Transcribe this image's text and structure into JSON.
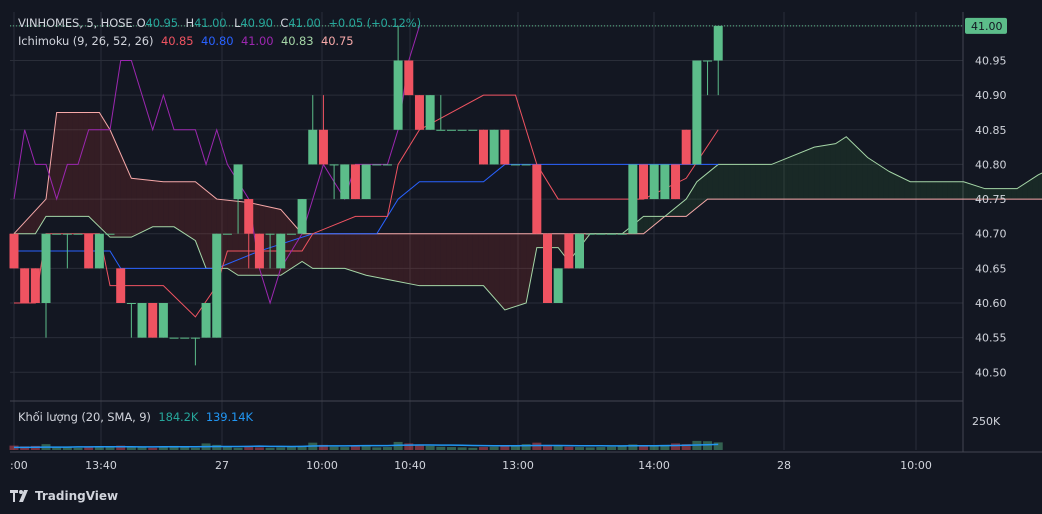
{
  "legend": {
    "symbol": "VINHOMES, 5, HOSE",
    "open_label": "O",
    "open": "40.95",
    "high_label": "H",
    "high": "41.00",
    "low_label": "L",
    "low": "40.90",
    "close_label": "C",
    "close": "41.00",
    "change": "+0.05 (+0.12%)",
    "ichimoku_name": "Ichimoku (9, 26, 52, 26)",
    "ichimoku_values": [
      "40.85",
      "40.80",
      "41.00",
      "40.83",
      "40.75"
    ],
    "volume_name": "Khối lượng (20, SMA, 9)",
    "volume_values": [
      "184.2K",
      "139.14K"
    ]
  },
  "price_badge": "41.00",
  "brand": "TradingView",
  "colors": {
    "bg": "#131722",
    "grid": "#2a2e39",
    "up": "#5cbd8a",
    "down": "#ef5361",
    "tenkan": "#ef5361",
    "kijun": "#2962ff",
    "chikou": "#9c27b0",
    "spanA": "#a5d6a7",
    "spanB": "#f7a9a9",
    "volume_ma": "#2196f3",
    "text": "#d1d4dc"
  },
  "chart_data": {
    "type": "candlestick",
    "title": "VINHOMES, 5, HOSE",
    "ylim": [
      40.46,
      41.02
    ],
    "y_ticks": [
      "41.00",
      "40.95",
      "40.90",
      "40.85",
      "40.80",
      "40.75",
      "40.70",
      "40.65",
      "40.60",
      "40.55",
      "40.50"
    ],
    "x_ticks": [
      ":00",
      "13:40",
      "27",
      "10:00",
      "10:40",
      "13:00",
      "14:00",
      "28",
      "10:00"
    ],
    "volume_tick": "250K",
    "volume_max": 300,
    "candles": [
      [
        40.7,
        40.65,
        40.65,
        40.7
      ],
      [
        40.65,
        40.6,
        40.6,
        40.65
      ],
      [
        40.65,
        40.6,
        40.6,
        40.65
      ],
      [
        40.6,
        40.7,
        40.55,
        40.7
      ],
      [
        40.7,
        40.7,
        40.7,
        40.7
      ],
      [
        40.7,
        40.7,
        40.65,
        40.7
      ],
      [
        40.7,
        40.7,
        40.7,
        40.7
      ],
      [
        40.7,
        40.65,
        40.65,
        40.7
      ],
      [
        40.65,
        40.7,
        40.65,
        40.7
      ],
      [
        40.7,
        40.7,
        40.7,
        40.7
      ],
      [
        40.65,
        40.6,
        40.6,
        40.65
      ],
      [
        40.6,
        40.6,
        40.55,
        40.6
      ],
      [
        40.55,
        40.6,
        40.55,
        40.6
      ],
      [
        40.6,
        40.55,
        40.55,
        40.6
      ],
      [
        40.55,
        40.6,
        40.55,
        40.6
      ],
      [
        40.55,
        40.55,
        40.55,
        40.55
      ],
      [
        40.55,
        40.55,
        40.55,
        40.55
      ],
      [
        40.55,
        40.55,
        40.51,
        40.55
      ],
      [
        40.55,
        40.6,
        40.55,
        40.6
      ],
      [
        40.55,
        40.7,
        40.55,
        40.7
      ],
      [
        40.7,
        40.7,
        40.7,
        40.7
      ],
      [
        40.75,
        40.8,
        40.7,
        40.8
      ],
      [
        40.75,
        40.7,
        40.65,
        40.75
      ],
      [
        40.7,
        40.65,
        40.65,
        40.7
      ],
      [
        40.7,
        40.7,
        40.65,
        40.7
      ],
      [
        40.65,
        40.7,
        40.65,
        40.7
      ],
      [
        40.7,
        40.7,
        40.7,
        40.7
      ],
      [
        40.7,
        40.75,
        40.7,
        40.75
      ],
      [
        40.8,
        40.85,
        40.8,
        40.9
      ],
      [
        40.85,
        40.8,
        40.8,
        40.9
      ],
      [
        40.8,
        40.8,
        40.75,
        40.8
      ],
      [
        40.75,
        40.8,
        40.75,
        40.8
      ],
      [
        40.8,
        40.75,
        40.75,
        40.8
      ],
      [
        40.75,
        40.8,
        40.75,
        40.8
      ],
      [
        40.8,
        40.8,
        40.8,
        40.8
      ],
      [
        40.8,
        40.8,
        40.8,
        40.8
      ],
      [
        40.85,
        40.95,
        40.85,
        41.0
      ],
      [
        40.95,
        40.9,
        40.9,
        40.95
      ],
      [
        40.9,
        40.85,
        40.85,
        40.9
      ],
      [
        40.85,
        40.9,
        40.85,
        40.9
      ],
      [
        40.85,
        40.85,
        40.85,
        40.9
      ],
      [
        40.85,
        40.85,
        40.85,
        40.85
      ],
      [
        40.85,
        40.85,
        40.85,
        40.85
      ],
      [
        40.85,
        40.85,
        40.85,
        40.85
      ],
      [
        40.85,
        40.8,
        40.8,
        40.85
      ],
      [
        40.8,
        40.85,
        40.8,
        40.85
      ],
      [
        40.85,
        40.8,
        40.8,
        40.85
      ],
      [
        40.8,
        40.8,
        40.8,
        40.8
      ],
      [
        40.8,
        40.8,
        40.8,
        40.8
      ],
      [
        40.8,
        40.7,
        40.7,
        40.8
      ],
      [
        40.7,
        40.6,
        40.6,
        40.7
      ],
      [
        40.6,
        40.65,
        40.6,
        40.65
      ],
      [
        40.7,
        40.65,
        40.65,
        40.7
      ],
      [
        40.65,
        40.7,
        40.65,
        40.7
      ],
      [
        40.7,
        40.7,
        40.7,
        40.7
      ],
      [
        40.7,
        40.7,
        40.7,
        40.7
      ],
      [
        40.7,
        40.7,
        40.7,
        40.7
      ],
      [
        40.7,
        40.7,
        40.7,
        40.7
      ],
      [
        40.7,
        40.8,
        40.7,
        40.8
      ],
      [
        40.8,
        40.75,
        40.75,
        40.8
      ],
      [
        40.75,
        40.8,
        40.75,
        40.8
      ],
      [
        40.75,
        40.8,
        40.75,
        40.8
      ],
      [
        40.8,
        40.75,
        40.75,
        40.8
      ],
      [
        40.85,
        40.8,
        40.8,
        40.85
      ],
      [
        40.8,
        40.95,
        40.8,
        40.95
      ],
      [
        40.95,
        40.95,
        40.9,
        40.95
      ],
      [
        40.95,
        41.0,
        40.9,
        41.0
      ]
    ],
    "volume": [
      30,
      25,
      28,
      40,
      20,
      18,
      15,
      22,
      26,
      20,
      30,
      20,
      18,
      15,
      22,
      28,
      18,
      15,
      45,
      35,
      25,
      15,
      20,
      18,
      15,
      18,
      20,
      25,
      50,
      35,
      22,
      20,
      30,
      25,
      18,
      20,
      55,
      45,
      35,
      28,
      22,
      20,
      18,
      15,
      20,
      22,
      30,
      25,
      40,
      50,
      35,
      28,
      22,
      20,
      18,
      20,
      22,
      25,
      38,
      30,
      28,
      35,
      45,
      40,
      62,
      60,
      52
    ],
    "volume_sma": [
      18,
      18,
      19,
      20,
      20,
      20,
      21,
      21,
      22,
      22,
      22,
      22,
      21,
      21,
      22,
      22,
      22,
      22,
      23,
      24,
      24,
      24,
      25,
      26,
      25,
      25,
      24,
      25,
      27,
      28,
      28,
      28,
      29,
      30,
      30,
      30,
      32,
      33,
      34,
      34,
      33,
      33,
      32,
      31,
      30,
      29,
      29,
      29,
      30,
      31,
      31,
      31,
      30,
      29,
      29,
      29,
      28,
      28,
      29,
      29,
      29,
      30,
      31,
      32,
      34,
      36,
      38
    ],
    "tenkan": [
      [
        0,
        40.6
      ],
      [
        2,
        40.6
      ],
      [
        3,
        40.7
      ],
      [
        8,
        40.7
      ],
      [
        9,
        40.625
      ],
      [
        14,
        40.625
      ],
      [
        17,
        40.58
      ],
      [
        19,
        40.625
      ],
      [
        20,
        40.675
      ],
      [
        22,
        40.675
      ],
      [
        25,
        40.675
      ],
      [
        27,
        40.675
      ],
      [
        28,
        40.7
      ],
      [
        32,
        40.725
      ],
      [
        35,
        40.725
      ],
      [
        36,
        40.8
      ],
      [
        38,
        40.85
      ],
      [
        44,
        40.9
      ],
      [
        47,
        40.9
      ],
      [
        49,
        40.8
      ],
      [
        51,
        40.75
      ],
      [
        57,
        40.75
      ],
      [
        59,
        40.75
      ],
      [
        63,
        40.78
      ],
      [
        66,
        40.85
      ]
    ],
    "kijun": [
      [
        0,
        40.675
      ],
      [
        9,
        40.675
      ],
      [
        10,
        40.65
      ],
      [
        18,
        40.65
      ],
      [
        19,
        40.65
      ],
      [
        23,
        40.675
      ],
      [
        28,
        40.7
      ],
      [
        34,
        40.7
      ],
      [
        36,
        40.75
      ],
      [
        38,
        40.775
      ],
      [
        44,
        40.775
      ],
      [
        46,
        40.8
      ],
      [
        66,
        40.8
      ]
    ],
    "chikou": [
      [
        0,
        40.75
      ],
      [
        1,
        40.85
      ],
      [
        2,
        40.8
      ],
      [
        3,
        40.8
      ],
      [
        4,
        40.75
      ],
      [
        5,
        40.8
      ],
      [
        6,
        40.8
      ],
      [
        7,
        40.85
      ],
      [
        9,
        40.85
      ],
      [
        10,
        40.95
      ],
      [
        11,
        40.95
      ],
      [
        12,
        40.9
      ],
      [
        13,
        40.85
      ],
      [
        14,
        40.9
      ],
      [
        15,
        40.85
      ],
      [
        16,
        40.85
      ],
      [
        17,
        40.85
      ],
      [
        18,
        40.8
      ],
      [
        19,
        40.85
      ],
      [
        20,
        40.8
      ],
      [
        22,
        40.75
      ],
      [
        23,
        40.65
      ],
      [
        24,
        40.6
      ],
      [
        25,
        40.65
      ],
      [
        27,
        40.7
      ],
      [
        29,
        40.8
      ],
      [
        31,
        40.75
      ],
      [
        32,
        40.8
      ],
      [
        34,
        40.8
      ],
      [
        35,
        40.8
      ],
      [
        36,
        40.85
      ],
      [
        37,
        40.95
      ],
      [
        38,
        41.0
      ]
    ],
    "span_a": [
      [
        0,
        40.7
      ],
      [
        2,
        40.7
      ],
      [
        3,
        40.725
      ],
      [
        7,
        40.725
      ],
      [
        9,
        40.695
      ],
      [
        11,
        40.695
      ],
      [
        13,
        40.71
      ],
      [
        15,
        40.71
      ],
      [
        17,
        40.69
      ],
      [
        18,
        40.65
      ],
      [
        20,
        40.65
      ],
      [
        21,
        40.64
      ],
      [
        25,
        40.64
      ],
      [
        27,
        40.66
      ],
      [
        28,
        40.65
      ],
      [
        31,
        40.65
      ],
      [
        33,
        40.64
      ],
      [
        38,
        40.625
      ],
      [
        44,
        40.625
      ],
      [
        46,
        40.59
      ],
      [
        48,
        40.6
      ],
      [
        49,
        40.68
      ],
      [
        51,
        40.68
      ],
      [
        52,
        40.66
      ],
      [
        53,
        40.68
      ],
      [
        54,
        40.7
      ],
      [
        57,
        40.7
      ],
      [
        59,
        40.725
      ],
      [
        61,
        40.725
      ],
      [
        63,
        40.75
      ],
      [
        64,
        40.775
      ],
      [
        66,
        40.8
      ],
      [
        71,
        40.8
      ],
      [
        75,
        40.825
      ],
      [
        77,
        40.83
      ],
      [
        78,
        40.84
      ],
      [
        80,
        40.81
      ],
      [
        82,
        40.79
      ],
      [
        84,
        40.775
      ],
      [
        89,
        40.775
      ],
      [
        91,
        40.765
      ],
      [
        94,
        40.765
      ],
      [
        96,
        40.785
      ],
      [
        98,
        40.8
      ],
      [
        99,
        40.81
      ]
    ],
    "span_b": [
      [
        0,
        40.7
      ],
      [
        3,
        40.75
      ],
      [
        4,
        40.875
      ],
      [
        8,
        40.875
      ],
      [
        9,
        40.85
      ],
      [
        11,
        40.78
      ],
      [
        14,
        40.775
      ],
      [
        17,
        40.775
      ],
      [
        19,
        40.75
      ],
      [
        22,
        40.745
      ],
      [
        25,
        40.735
      ],
      [
        27,
        40.7
      ],
      [
        28,
        40.7
      ],
      [
        49,
        40.7
      ],
      [
        54,
        40.7
      ],
      [
        58,
        40.7
      ],
      [
        59,
        40.7
      ],
      [
        61,
        40.725
      ],
      [
        63,
        40.725
      ],
      [
        65,
        40.75
      ],
      [
        99,
        40.75
      ]
    ]
  }
}
